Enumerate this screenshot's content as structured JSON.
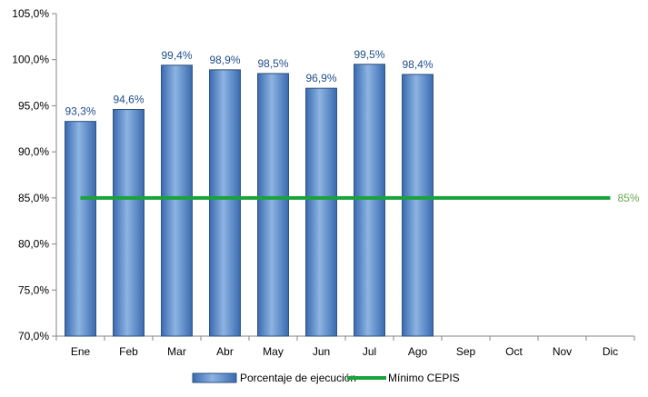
{
  "chart_data": {
    "type": "bar",
    "categories": [
      "Ene",
      "Feb",
      "Mar",
      "Abr",
      "May",
      "Jun",
      "Jul",
      "Ago",
      "Sep",
      "Oct",
      "Nov",
      "Dic"
    ],
    "series": [
      {
        "name": "Porcentaje de ejecución",
        "type": "bar",
        "values": [
          93.3,
          94.6,
          99.4,
          98.9,
          98.5,
          96.9,
          99.5,
          98.4,
          null,
          null,
          null,
          null
        ],
        "data_labels": [
          "93,3%",
          "94,6%",
          "99,4%",
          "98,9%",
          "98,5%",
          "96,9%",
          "99,5%",
          "98,4%",
          "",
          "",
          "",
          ""
        ],
        "color": "#4f81bd"
      },
      {
        "name": "Mínimo CEPIS",
        "type": "line",
        "values": [
          85,
          85,
          85,
          85,
          85,
          85,
          85,
          85,
          85,
          85,
          85,
          85
        ],
        "end_label": "85%",
        "color": "#1aa33c"
      }
    ],
    "ylim": [
      70,
      105
    ],
    "yticks": [
      70,
      75,
      80,
      85,
      90,
      95,
      100,
      105
    ],
    "ytick_labels": [
      "70,0%",
      "75,0%",
      "80,0%",
      "85,0%",
      "90,0%",
      "95,0%",
      "100,0%",
      "105,0%"
    ],
    "legend_position": "bottom",
    "grid": false
  }
}
